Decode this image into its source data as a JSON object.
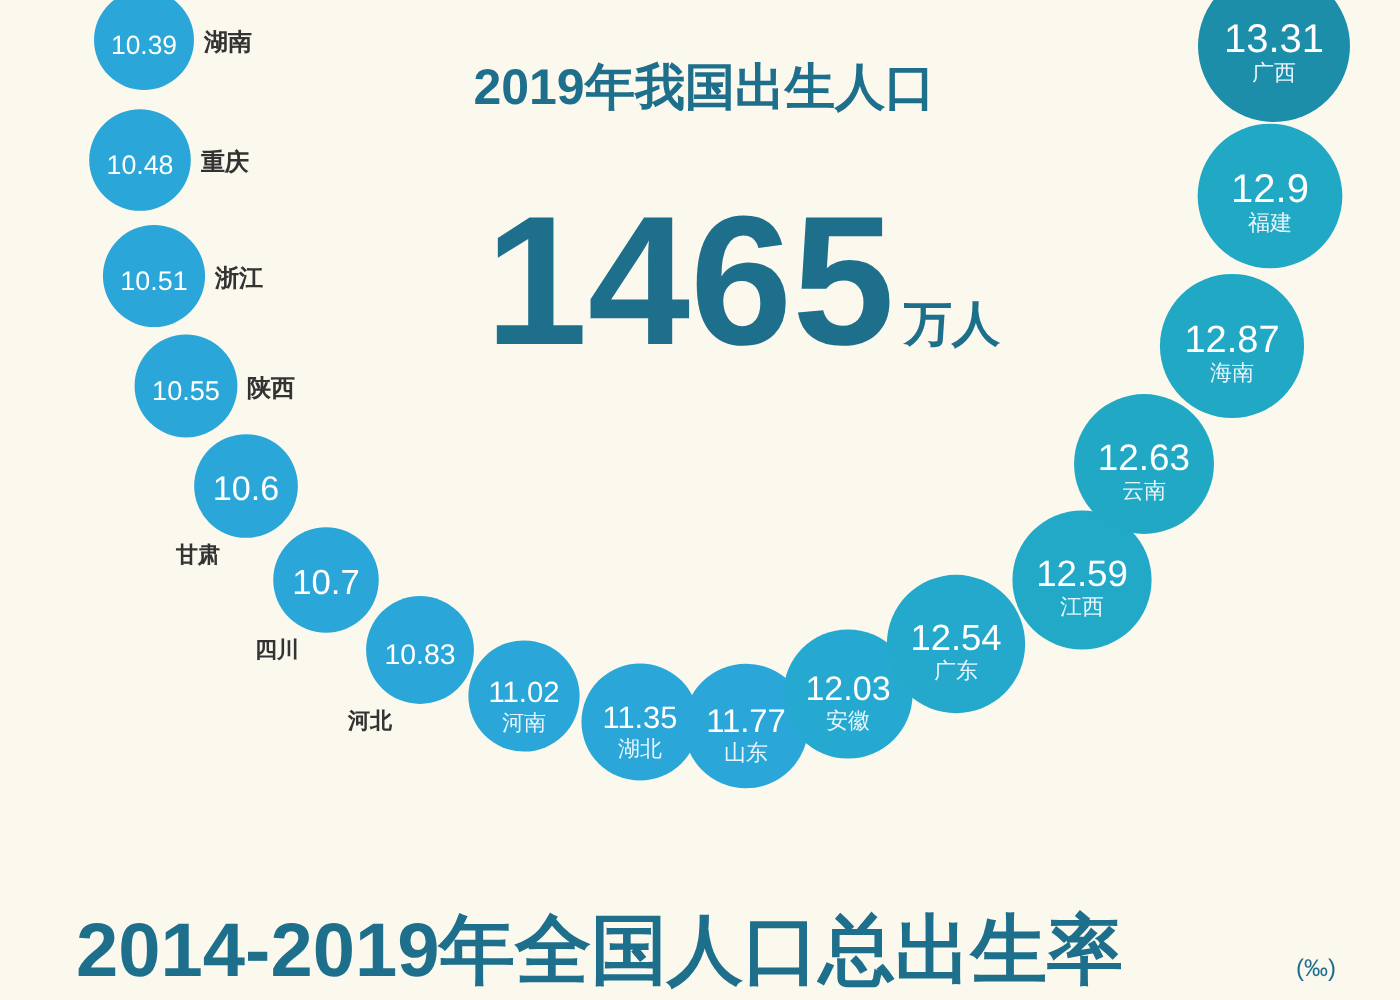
{
  "chart_data": {
    "type": "other",
    "title": "2019年我国出生人口",
    "categories": [
      "湖南",
      "重庆",
      "浙江",
      "陕西",
      "甘肃",
      "四川",
      "河北",
      "河南",
      "湖北",
      "山东",
      "安徽",
      "广东",
      "江西",
      "云南",
      "海南",
      "福建",
      "广西"
    ],
    "values": [
      10.39,
      10.48,
      10.51,
      10.55,
      10.6,
      10.7,
      10.83,
      11.02,
      11.35,
      11.77,
      12.03,
      12.54,
      12.59,
      12.63,
      12.87,
      12.9,
      13.31
    ],
    "colors": [
      "#2ba6d9",
      "#2ba6d9",
      "#2ba6d9",
      "#2ba6d9",
      "#2ba6d9",
      "#2ba6d9",
      "#2ba6d9",
      "#2ba6d9",
      "#2ba6d9",
      "#2ba6d9",
      "#26a9d0",
      "#24a9cc",
      "#22a9c8",
      "#21a8c4",
      "#20a8c4",
      "#20a8c4",
      "#1c8ea9"
    ],
    "data_labels": true,
    "annotations": [
      "1465",
      "万人",
      "2014-2019年全国人口总出生率",
      "(‰)"
    ]
  }
}
